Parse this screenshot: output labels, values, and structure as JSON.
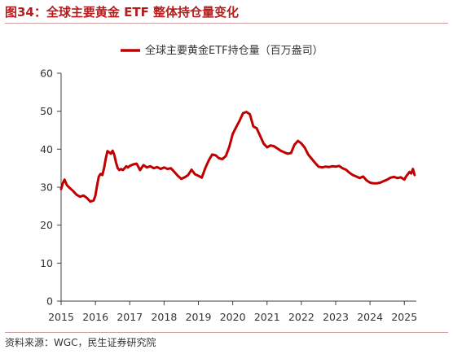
{
  "figure": {
    "title": "图34：全球主要黄金 ETF 整体持仓量变化",
    "source": "资料来源：WGC，民生证券研究院"
  },
  "colors": {
    "series": "#c00000",
    "title": "#b71c1c",
    "axis": "#404040"
  },
  "chart_data": {
    "type": "line",
    "title": "",
    "xlabel": "",
    "ylabel": "",
    "xlim": [
      2015,
      2025.35
    ],
    "ylim": [
      0,
      60
    ],
    "yticks": [
      0,
      10,
      20,
      30,
      40,
      50,
      60
    ],
    "xticks": [
      "2015",
      "2016",
      "2017",
      "2018",
      "2019",
      "2020",
      "2021",
      "2022",
      "2023",
      "2024",
      "2025"
    ],
    "grid": false,
    "legend": "top-center",
    "series": [
      {
        "name": "全球主要黄金ETF持仓量（百万盎司）",
        "x": [
          2015.0,
          2015.05,
          2015.1,
          2015.17,
          2015.25,
          2015.35,
          2015.45,
          2015.55,
          2015.65,
          2015.75,
          2015.85,
          2015.95,
          2016.0,
          2016.05,
          2016.1,
          2016.15,
          2016.2,
          2016.25,
          2016.3,
          2016.35,
          2016.4,
          2016.45,
          2016.5,
          2016.55,
          2016.6,
          2016.65,
          2016.7,
          2016.75,
          2016.8,
          2016.85,
          2016.9,
          2016.95,
          2017.0,
          2017.1,
          2017.2,
          2017.3,
          2017.4,
          2017.5,
          2017.6,
          2017.7,
          2017.8,
          2017.9,
          2018.0,
          2018.1,
          2018.2,
          2018.3,
          2018.4,
          2018.5,
          2018.6,
          2018.7,
          2018.8,
          2018.9,
          2019.0,
          2019.1,
          2019.2,
          2019.3,
          2019.4,
          2019.5,
          2019.6,
          2019.7,
          2019.8,
          2019.9,
          2020.0,
          2020.1,
          2020.2,
          2020.3,
          2020.4,
          2020.5,
          2020.6,
          2020.7,
          2020.8,
          2020.9,
          2021.0,
          2021.1,
          2021.2,
          2021.3,
          2021.4,
          2021.5,
          2021.6,
          2021.7,
          2021.8,
          2021.9,
          2022.0,
          2022.1,
          2022.2,
          2022.3,
          2022.4,
          2022.5,
          2022.6,
          2022.7,
          2022.8,
          2022.9,
          2023.0,
          2023.1,
          2023.2,
          2023.3,
          2023.4,
          2023.5,
          2023.6,
          2023.7,
          2023.8,
          2023.9,
          2024.0,
          2024.1,
          2024.2,
          2024.3,
          2024.4,
          2024.5,
          2024.6,
          2024.7,
          2024.8,
          2024.9,
          2025.0,
          2025.05,
          2025.1,
          2025.15,
          2025.2,
          2025.25,
          2025.3
        ],
        "values": [
          29.5,
          31.0,
          32.0,
          30.5,
          29.8,
          29.0,
          28.0,
          27.5,
          27.8,
          27.2,
          26.2,
          26.5,
          27.8,
          30.5,
          32.8,
          33.5,
          33.2,
          35.0,
          37.5,
          39.5,
          39.2,
          38.8,
          39.6,
          38.5,
          36.5,
          35.0,
          34.5,
          34.8,
          34.5,
          35.0,
          35.5,
          35.2,
          35.6,
          36.0,
          36.2,
          34.5,
          35.8,
          35.2,
          35.5,
          35.0,
          35.3,
          34.8,
          35.2,
          34.8,
          35.0,
          34.0,
          33.0,
          32.2,
          32.6,
          33.2,
          34.6,
          33.4,
          33.0,
          32.5,
          35.0,
          37.0,
          38.6,
          38.4,
          37.6,
          37.4,
          38.2,
          40.6,
          44.0,
          45.8,
          47.5,
          49.5,
          49.8,
          49.2,
          46.0,
          45.5,
          43.5,
          41.5,
          40.5,
          41.0,
          40.8,
          40.2,
          39.6,
          39.2,
          38.8,
          39.0,
          41.2,
          42.2,
          41.5,
          40.4,
          38.6,
          37.5,
          36.4,
          35.4,
          35.2,
          35.4,
          35.3,
          35.5,
          35.4,
          35.6,
          35.0,
          34.6,
          33.8,
          33.2,
          32.8,
          32.4,
          32.8,
          31.8,
          31.2,
          31.0,
          31.0,
          31.2,
          31.6,
          32.0,
          32.5,
          32.7,
          32.4,
          32.6,
          32.0,
          32.8,
          33.4,
          34.0,
          33.6,
          34.8,
          33.2
        ]
      }
    ]
  }
}
